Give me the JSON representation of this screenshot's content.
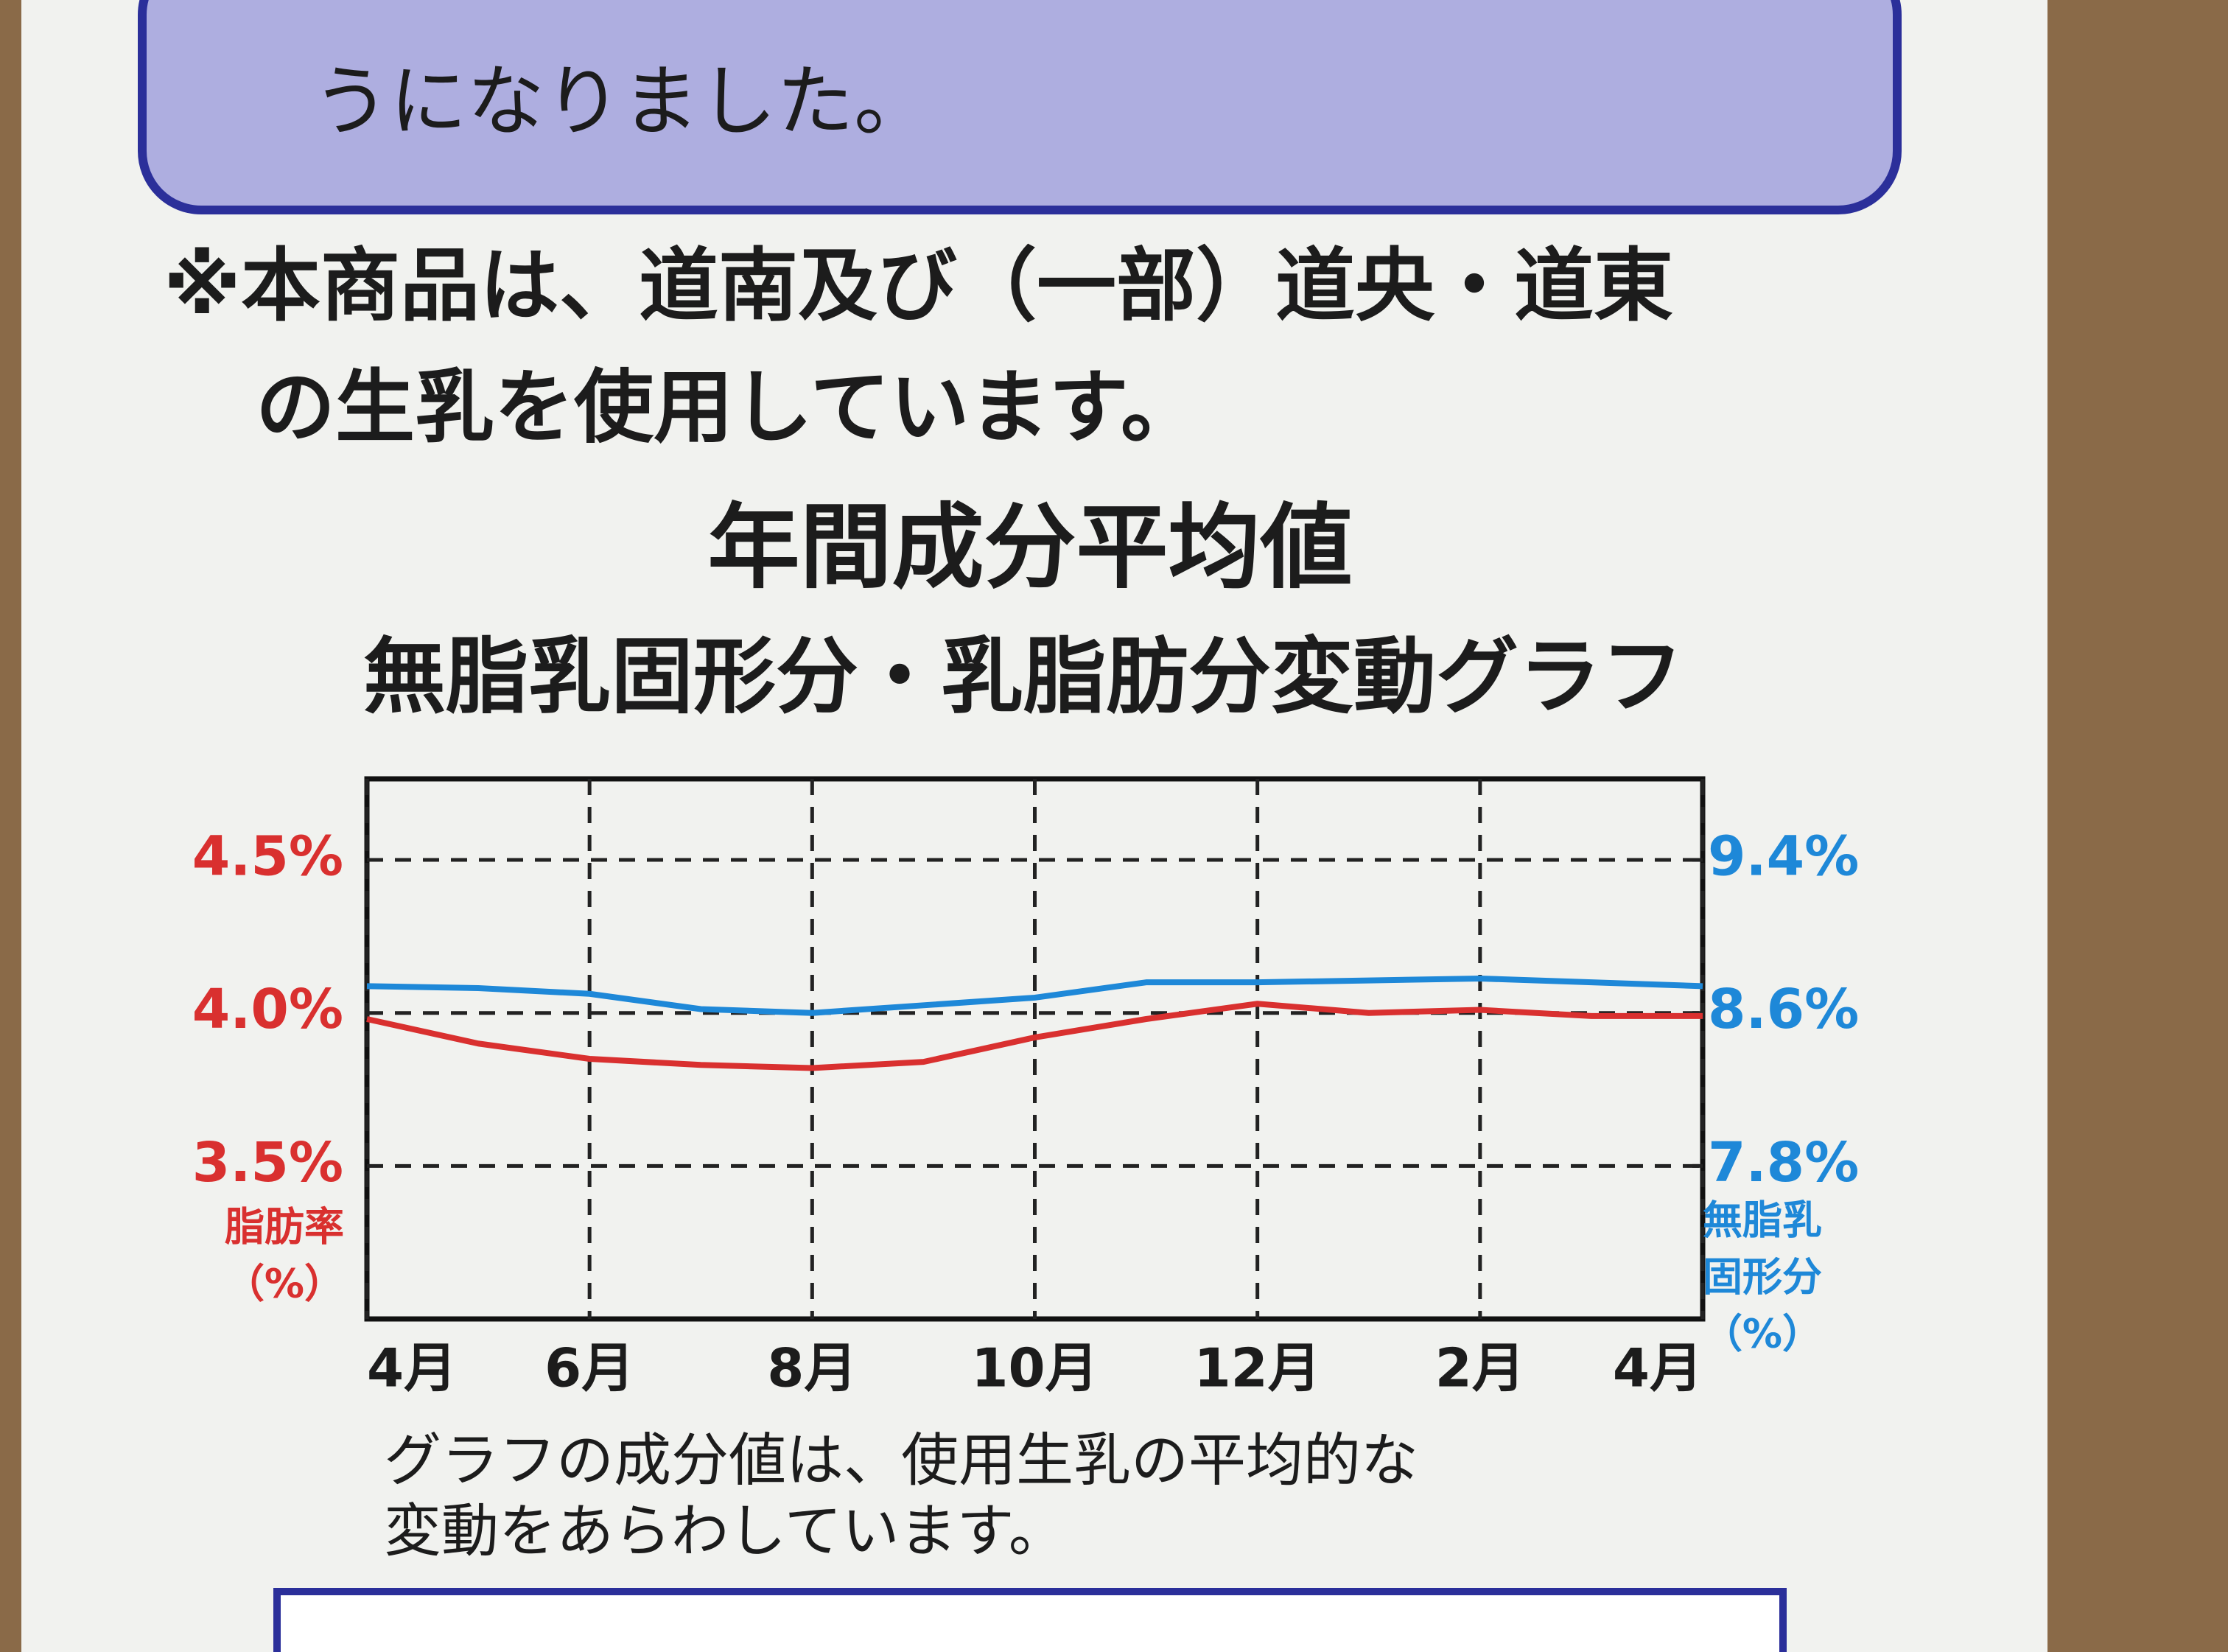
{
  "top_text": "うになりました。",
  "note": [
    "※本商品は、道南及び（一部）道央・道東",
    "の生乳を使用しています。"
  ],
  "chart_data": {
    "type": "line",
    "title": "年間成分平均値",
    "subtitle": "無脂乳固形分・乳脂肪分変動グラフ",
    "x": [
      0,
      1,
      2,
      3,
      4,
      5,
      6,
      7,
      8,
      9,
      10,
      11,
      12
    ],
    "xlim": [
      0,
      12
    ],
    "xticks": [
      {
        "value": 0,
        "label": "4月"
      },
      {
        "value": 2,
        "label": "6月"
      },
      {
        "value": 4,
        "label": "8月"
      },
      {
        "value": 6,
        "label": "10月"
      },
      {
        "value": 8,
        "label": "12月"
      },
      {
        "value": 10,
        "label": "2月"
      },
      {
        "value": 12,
        "label": "4月"
      }
    ],
    "ylim": [
      3.0,
      4.765
    ],
    "yticks": [
      {
        "value": 3.5,
        "label": "3.5%"
      },
      {
        "value": 4.0,
        "label": "4.0%"
      },
      {
        "value": 4.5,
        "label": "4.5%"
      }
    ],
    "y2lim": [
      7.0,
      9.824
    ],
    "y2ticks": [
      {
        "value": 7.8,
        "label": "7.8%"
      },
      {
        "value": 8.6,
        "label": "8.6%"
      },
      {
        "value": 9.4,
        "label": "9.4%"
      }
    ],
    "ylabel": [
      "脂肪率",
      "（%）"
    ],
    "y2label": [
      "無脂乳",
      "固形分",
      "（%）"
    ],
    "grid": true,
    "series": [
      {
        "color": "#d9302f",
        "values": [
          3.98,
          3.9,
          3.85,
          3.83,
          3.82,
          3.84,
          3.92,
          3.98,
          4.03,
          4.0,
          4.01,
          3.99,
          3.99
        ]
      },
      {
        "color": "#1e88d8",
        "axis": "y2",
        "values": [
          8.74,
          8.73,
          8.7,
          8.62,
          8.6,
          8.64,
          8.68,
          8.76,
          8.76,
          8.77,
          8.78,
          8.76,
          8.74
        ]
      }
    ],
    "footnote": [
      "グラフの成分値は、使用生乳の平均的な",
      "変動をあらわしています。"
    ]
  }
}
